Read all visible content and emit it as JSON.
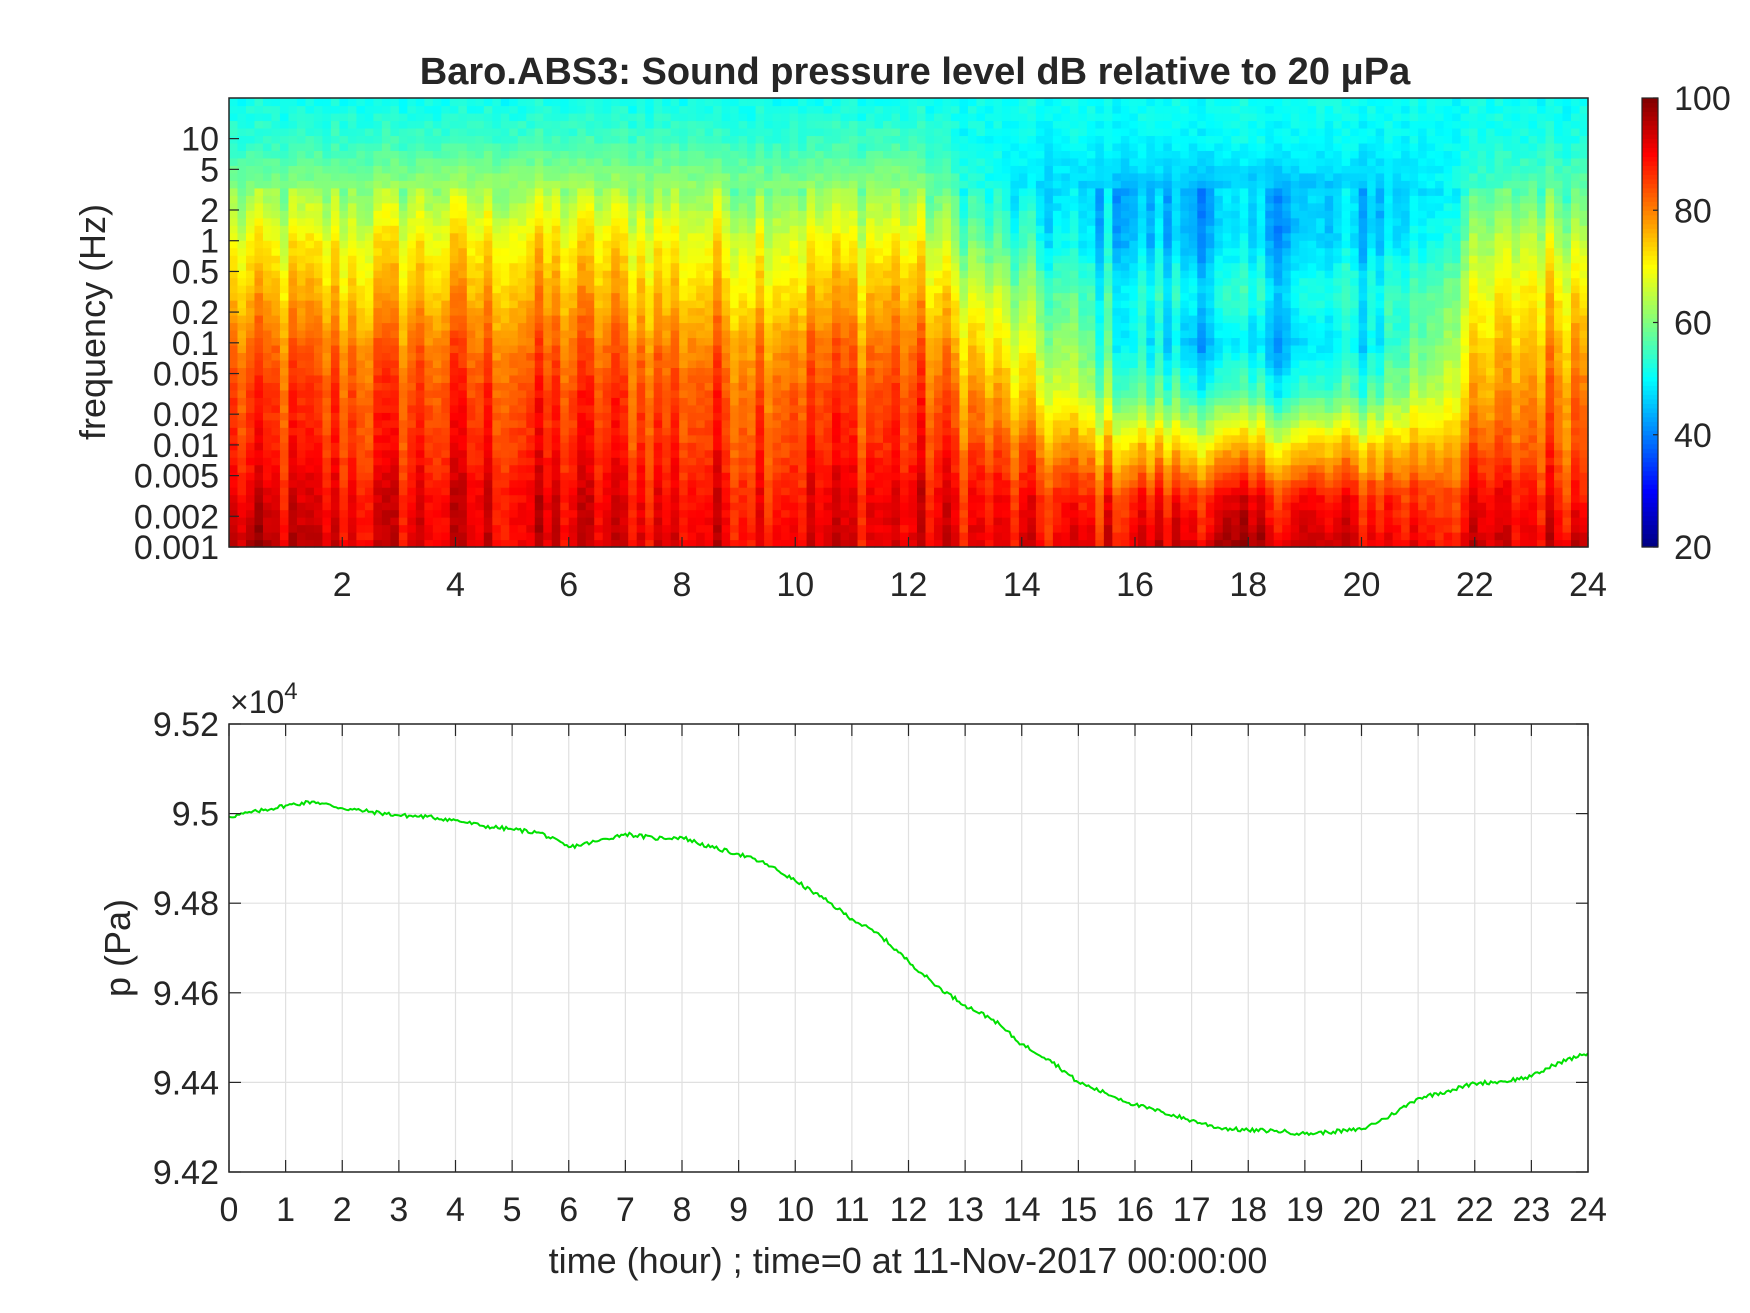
{
  "chart_data": [
    {
      "type": "heatmap",
      "title": "Baro.ABS3: Sound pressure level dB relative to 20 μPa",
      "xlabel": "",
      "ylabel": "frequency (Hz)",
      "x_range": [
        0,
        24
      ],
      "x_ticks": [
        2,
        4,
        6,
        8,
        10,
        12,
        14,
        16,
        18,
        20,
        22,
        24
      ],
      "y_scale": "log",
      "y_range": [
        0.001,
        25
      ],
      "y_ticks": [
        0.001,
        0.002,
        0.005,
        0.01,
        0.02,
        0.05,
        0.1,
        0.2,
        0.5,
        1,
        2,
        5,
        10
      ],
      "y_tick_labels": [
        "0.001",
        "0.002",
        "0.005",
        "0.01",
        "0.02",
        "0.05",
        "0.1",
        "0.2",
        "0.5",
        "1",
        "2",
        "5",
        "10"
      ],
      "colormap": "jet",
      "colorbar": {
        "range": [
          20,
          100
        ],
        "ticks": [
          20,
          40,
          60,
          80,
          100
        ]
      },
      "level_profile_db": {
        "log10_freq_knots": [
          -3.0,
          -2.5,
          -2.0,
          -1.5,
          -1.0,
          -0.5,
          0.0,
          0.5,
          1.0,
          1.4
        ],
        "hour_knots": [
          0,
          2,
          4,
          6,
          8,
          10,
          12,
          13,
          14,
          15,
          16,
          17,
          18,
          19,
          20,
          21,
          22,
          23,
          24
        ],
        "values": [
          [
            96,
            92,
            92,
            92,
            92,
            92,
            92,
            91,
            90,
            90,
            92,
            94,
            95,
            94,
            92,
            91,
            91,
            92,
            96
          ],
          [
            90,
            90,
            91,
            91,
            90,
            90,
            91,
            89,
            87,
            86,
            87,
            88,
            89,
            88,
            87,
            86,
            88,
            89,
            88
          ],
          [
            86,
            86,
            87,
            87,
            86,
            86,
            87,
            84,
            80,
            76,
            73,
            72,
            72,
            72,
            73,
            76,
            80,
            83,
            84
          ],
          [
            84,
            84,
            85,
            85,
            84,
            84,
            85,
            80,
            72,
            64,
            58,
            55,
            54,
            54,
            56,
            64,
            74,
            80,
            82
          ],
          [
            80,
            80,
            81,
            81,
            80,
            80,
            81,
            74,
            66,
            58,
            50,
            46,
            45,
            46,
            48,
            58,
            70,
            76,
            78
          ],
          [
            74,
            74,
            76,
            76,
            74,
            74,
            76,
            68,
            60,
            54,
            52,
            51,
            51,
            51,
            52,
            56,
            66,
            72,
            73
          ],
          [
            68,
            69,
            71,
            71,
            70,
            69,
            70,
            60,
            52,
            48,
            46,
            45,
            45,
            45,
            46,
            50,
            60,
            66,
            66
          ],
          [
            60,
            61,
            63,
            63,
            62,
            61,
            62,
            54,
            48,
            46,
            45,
            45,
            45,
            45,
            46,
            48,
            54,
            58,
            58
          ],
          [
            53,
            54,
            55,
            55,
            55,
            54,
            55,
            51,
            50,
            50,
            50,
            50,
            50,
            50,
            50,
            50,
            51,
            52,
            52
          ],
          [
            51,
            51,
            51,
            51,
            51,
            51,
            51,
            51,
            51,
            51,
            51,
            51,
            51,
            51,
            51,
            51,
            51,
            51,
            51
          ]
        ]
      }
    },
    {
      "type": "line",
      "title": "",
      "xlabel": "time (hour) ; time=0 at 11-Nov-2017 00:00:00",
      "ylabel": "p (Pa)",
      "y_exponent_label": "×10",
      "y_exponent_power": "4",
      "xlim": [
        0,
        24
      ],
      "ylim": [
        9.42,
        9.52
      ],
      "x_ticks": [
        0,
        1,
        2,
        3,
        4,
        5,
        6,
        7,
        8,
        9,
        10,
        11,
        12,
        13,
        14,
        15,
        16,
        17,
        18,
        19,
        20,
        21,
        22,
        23,
        24
      ],
      "y_ticks": [
        9.42,
        9.44,
        9.46,
        9.48,
        9.5,
        9.52
      ],
      "y_tick_labels": [
        "9.42",
        "9.44",
        "9.46",
        "9.48",
        "9.5",
        "9.52"
      ],
      "grid": true,
      "line_color": "#00e000",
      "x": [
        0,
        0.5,
        1,
        1.5,
        2,
        2.5,
        3,
        3.5,
        4,
        4.5,
        5,
        5.5,
        6,
        6.5,
        7,
        7.5,
        8,
        8.5,
        9,
        9.5,
        10,
        10.5,
        11,
        11.5,
        12,
        12.5,
        13,
        13.5,
        14,
        14.5,
        15,
        15.5,
        16,
        16.5,
        17,
        17.5,
        18,
        18.5,
        19,
        19.5,
        20,
        20.5,
        21,
        21.5,
        22,
        22.5,
        23,
        23.5,
        24
      ],
      "y": [
        9.4993,
        9.5005,
        9.5018,
        9.5027,
        9.5012,
        9.5004,
        9.4996,
        9.4993,
        9.4985,
        9.4972,
        9.4965,
        9.4957,
        9.4925,
        9.4938,
        9.4955,
        9.4945,
        9.4947,
        9.4925,
        9.491,
        9.4887,
        9.485,
        9.481,
        9.4765,
        9.4728,
        9.467,
        9.4615,
        9.4572,
        9.454,
        9.4485,
        9.445,
        9.44,
        9.4375,
        9.435,
        9.4333,
        9.4315,
        9.4298,
        9.4293,
        9.4292,
        9.4285,
        9.429,
        9.4295,
        9.4325,
        9.4365,
        9.438,
        9.4398,
        9.4402,
        9.4413,
        9.4445,
        9.4465
      ]
    }
  ]
}
